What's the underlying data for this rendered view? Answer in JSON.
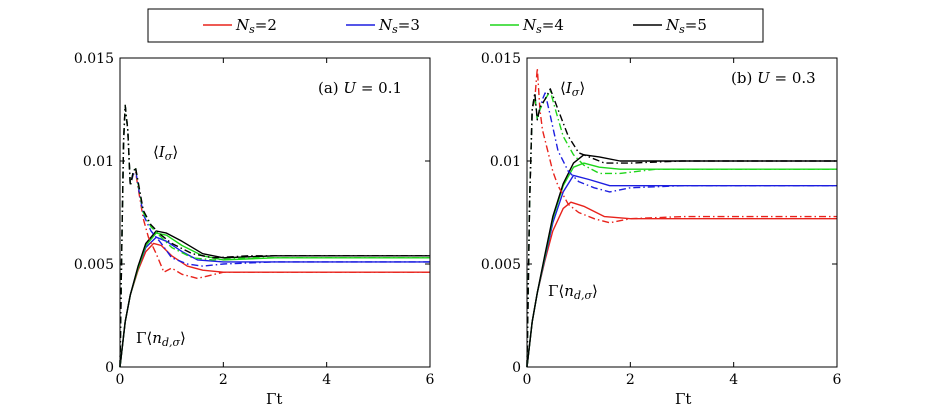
{
  "legend": [
    {
      "label": "N_s=2",
      "N": "2",
      "color": "#e8231c"
    },
    {
      "label": "N_s=3",
      "N": "3",
      "color": "#1d1ee0"
    },
    {
      "label": "N_s=4",
      "N": "4",
      "color": "#1ed51a"
    },
    {
      "label": "N_s=5",
      "N": "5",
      "color": "#000000"
    }
  ],
  "chart_data": [
    {
      "type": "line",
      "panel": "a",
      "title": "(a) U = 0.1",
      "xlabel": "Γt",
      "xlim": [
        0,
        6
      ],
      "ylim": [
        0,
        0.015
      ],
      "xticks": [
        0,
        2,
        4,
        6
      ],
      "xtick_labels": [
        "0",
        "2",
        "4",
        "6"
      ],
      "yticks": [
        0,
        0.005,
        0.01,
        0.015
      ],
      "ytick_labels": [
        "0",
        "0.005",
        "0.01",
        "0.015"
      ],
      "annotations": [
        "⟨I_σ⟩",
        "Γ⟨n_{d,σ}⟩"
      ],
      "series": [
        {
          "name": "Ns=2 Γ⟨n⟩",
          "ns": "2",
          "style": "solid",
          "points": [
            [
              0,
              0
            ],
            [
              0.1,
              0.0022
            ],
            [
              0.2,
              0.0035
            ],
            [
              0.35,
              0.0047
            ],
            [
              0.5,
              0.0056
            ],
            [
              0.65,
              0.006
            ],
            [
              0.8,
              0.0059
            ],
            [
              1.0,
              0.0054
            ],
            [
              1.3,
              0.0049
            ],
            [
              1.6,
              0.0047
            ],
            [
              2.0,
              0.0046
            ],
            [
              3.0,
              0.0046
            ],
            [
              6.0,
              0.0046
            ]
          ]
        },
        {
          "name": "Ns=3 Γ⟨n⟩",
          "ns": "3",
          "style": "solid",
          "points": [
            [
              0,
              0
            ],
            [
              0.1,
              0.0022
            ],
            [
              0.2,
              0.0035
            ],
            [
              0.35,
              0.0048
            ],
            [
              0.5,
              0.0058
            ],
            [
              0.7,
              0.0063
            ],
            [
              0.9,
              0.0061
            ],
            [
              1.2,
              0.0056
            ],
            [
              1.5,
              0.0052
            ],
            [
              2.0,
              0.0051
            ],
            [
              3.0,
              0.0051
            ],
            [
              6.0,
              0.0051
            ]
          ]
        },
        {
          "name": "Ns=4 Γ⟨n⟩",
          "ns": "4",
          "style": "solid",
          "points": [
            [
              0,
              0
            ],
            [
              0.1,
              0.0022
            ],
            [
              0.2,
              0.0035
            ],
            [
              0.35,
              0.0048
            ],
            [
              0.5,
              0.0059
            ],
            [
              0.7,
              0.0065
            ],
            [
              0.9,
              0.0064
            ],
            [
              1.2,
              0.0059
            ],
            [
              1.6,
              0.0054
            ],
            [
              2.0,
              0.0052
            ],
            [
              3.0,
              0.0053
            ],
            [
              6.0,
              0.0053
            ]
          ]
        },
        {
          "name": "Ns=5 Γ⟨n⟩",
          "ns": "5",
          "style": "solid",
          "points": [
            [
              0,
              0
            ],
            [
              0.1,
              0.0022
            ],
            [
              0.2,
              0.0035
            ],
            [
              0.35,
              0.0049
            ],
            [
              0.5,
              0.006
            ],
            [
              0.7,
              0.0066
            ],
            [
              0.9,
              0.0065
            ],
            [
              1.2,
              0.0061
            ],
            [
              1.6,
              0.0055
            ],
            [
              2.0,
              0.0053
            ],
            [
              3.0,
              0.0054
            ],
            [
              6.0,
              0.0054
            ]
          ]
        },
        {
          "name": "Ns=2 ⟨I⟩",
          "ns": "2",
          "style": "dashdot",
          "points": [
            [
              0,
              0
            ],
            [
              0.03,
              0.005
            ],
            [
              0.07,
              0.011
            ],
            [
              0.1,
              0.0127
            ],
            [
              0.15,
              0.0115
            ],
            [
              0.2,
              0.0088
            ],
            [
              0.25,
              0.0093
            ],
            [
              0.3,
              0.0095
            ],
            [
              0.35,
              0.0087
            ],
            [
              0.45,
              0.0072
            ],
            [
              0.55,
              0.0063
            ],
            [
              0.7,
              0.0055
            ],
            [
              0.85,
              0.0046
            ],
            [
              1.0,
              0.0048
            ],
            [
              1.2,
              0.0045
            ],
            [
              1.5,
              0.0043
            ],
            [
              2.0,
              0.0046
            ],
            [
              3.0,
              0.0046
            ],
            [
              6.0,
              0.0046
            ]
          ]
        },
        {
          "name": "Ns=3 ⟨I⟩",
          "ns": "3",
          "style": "dashdot",
          "points": [
            [
              0,
              0
            ],
            [
              0.03,
              0.005
            ],
            [
              0.07,
              0.011
            ],
            [
              0.1,
              0.0127
            ],
            [
              0.15,
              0.0115
            ],
            [
              0.2,
              0.0088
            ],
            [
              0.25,
              0.0093
            ],
            [
              0.3,
              0.0096
            ],
            [
              0.35,
              0.0088
            ],
            [
              0.45,
              0.0074
            ],
            [
              0.6,
              0.0066
            ],
            [
              0.8,
              0.006
            ],
            [
              1.0,
              0.0053
            ],
            [
              1.3,
              0.005
            ],
            [
              1.6,
              0.0049
            ],
            [
              2.0,
              0.005
            ],
            [
              3.0,
              0.0051
            ],
            [
              6.0,
              0.0051
            ]
          ]
        },
        {
          "name": "Ns=4 ⟨I⟩",
          "ns": "4",
          "style": "dashdot",
          "points": [
            [
              0,
              0
            ],
            [
              0.03,
              0.005
            ],
            [
              0.07,
              0.011
            ],
            [
              0.1,
              0.0127
            ],
            [
              0.15,
              0.0115
            ],
            [
              0.2,
              0.0088
            ],
            [
              0.25,
              0.0094
            ],
            [
              0.3,
              0.0097
            ],
            [
              0.35,
              0.0089
            ],
            [
              0.45,
              0.0075
            ],
            [
              0.6,
              0.0068
            ],
            [
              0.8,
              0.0063
            ],
            [
              1.0,
              0.0058
            ],
            [
              1.4,
              0.0053
            ],
            [
              1.8,
              0.0052
            ],
            [
              2.5,
              0.0053
            ],
            [
              6.0,
              0.0053
            ]
          ]
        },
        {
          "name": "Ns=5 ⟨I⟩",
          "ns": "5",
          "style": "dashdot",
          "points": [
            [
              0,
              0
            ],
            [
              0.03,
              0.005
            ],
            [
              0.07,
              0.011
            ],
            [
              0.1,
              0.0127
            ],
            [
              0.15,
              0.0115
            ],
            [
              0.2,
              0.0088
            ],
            [
              0.25,
              0.0094
            ],
            [
              0.3,
              0.0097
            ],
            [
              0.35,
              0.009
            ],
            [
              0.45,
              0.0076
            ],
            [
              0.6,
              0.0069
            ],
            [
              0.8,
              0.0064
            ],
            [
              1.0,
              0.006
            ],
            [
              1.4,
              0.0055
            ],
            [
              1.8,
              0.0053
            ],
            [
              2.5,
              0.0054
            ],
            [
              6.0,
              0.0054
            ]
          ]
        }
      ]
    },
    {
      "type": "line",
      "panel": "b",
      "title": "(b) U = 0.3",
      "xlabel": "Γt",
      "xlim": [
        0,
        6
      ],
      "ylim": [
        0,
        0.015
      ],
      "xticks": [
        0,
        2,
        4,
        6
      ],
      "xtick_labels": [
        "0",
        "2",
        "4",
        "6"
      ],
      "yticks": [
        0,
        0.005,
        0.01,
        0.015
      ],
      "ytick_labels": [
        "0",
        "0.005",
        "0.01",
        "0.015"
      ],
      "annotations": [
        "⟨I_σ⟩",
        "Γ⟨n_{d,σ}⟩"
      ],
      "series": [
        {
          "name": "Ns=2 Γ⟨n⟩",
          "ns": "2",
          "style": "solid",
          "points": [
            [
              0,
              0
            ],
            [
              0.1,
              0.0022
            ],
            [
              0.2,
              0.0036
            ],
            [
              0.35,
              0.0052
            ],
            [
              0.5,
              0.0066
            ],
            [
              0.7,
              0.0077
            ],
            [
              0.85,
              0.008
            ],
            [
              1.1,
              0.0078
            ],
            [
              1.5,
              0.0073
            ],
            [
              2.0,
              0.0072
            ],
            [
              3.0,
              0.0072
            ],
            [
              6.0,
              0.0072
            ]
          ]
        },
        {
          "name": "Ns=3 Γ⟨n⟩",
          "ns": "3",
          "style": "solid",
          "points": [
            [
              0,
              0
            ],
            [
              0.1,
              0.0022
            ],
            [
              0.2,
              0.0036
            ],
            [
              0.35,
              0.0053
            ],
            [
              0.5,
              0.007
            ],
            [
              0.7,
              0.0085
            ],
            [
              0.9,
              0.0093
            ],
            [
              1.2,
              0.0091
            ],
            [
              1.6,
              0.0088
            ],
            [
              2.0,
              0.0088
            ],
            [
              3.0,
              0.0088
            ],
            [
              6.0,
              0.0088
            ]
          ]
        },
        {
          "name": "Ns=4 Γ⟨n⟩",
          "ns": "4",
          "style": "solid",
          "points": [
            [
              0,
              0
            ],
            [
              0.1,
              0.0022
            ],
            [
              0.2,
              0.0036
            ],
            [
              0.35,
              0.0054
            ],
            [
              0.5,
              0.0072
            ],
            [
              0.7,
              0.0088
            ],
            [
              0.9,
              0.0097
            ],
            [
              1.1,
              0.0099
            ],
            [
              1.4,
              0.0097
            ],
            [
              1.8,
              0.0096
            ],
            [
              2.5,
              0.0096
            ],
            [
              6.0,
              0.0096
            ]
          ]
        },
        {
          "name": "Ns=5 Γ⟨n⟩",
          "ns": "5",
          "style": "solid",
          "points": [
            [
              0,
              0
            ],
            [
              0.1,
              0.0022
            ],
            [
              0.2,
              0.0036
            ],
            [
              0.35,
              0.0055
            ],
            [
              0.5,
              0.0073
            ],
            [
              0.7,
              0.0089
            ],
            [
              0.9,
              0.0099
            ],
            [
              1.1,
              0.0103
            ],
            [
              1.4,
              0.0102
            ],
            [
              1.8,
              0.01
            ],
            [
              2.5,
              0.01
            ],
            [
              6.0,
              0.01
            ]
          ]
        },
        {
          "name": "Ns=2 ⟨I⟩",
          "ns": "2",
          "style": "dashdot",
          "points": [
            [
              0,
              0
            ],
            [
              0.05,
              0.008
            ],
            [
              0.1,
              0.0125
            ],
            [
              0.15,
              0.013
            ],
            [
              0.2,
              0.0145
            ],
            [
              0.25,
              0.0125
            ],
            [
              0.3,
              0.0115
            ],
            [
              0.4,
              0.0105
            ],
            [
              0.5,
              0.0095
            ],
            [
              0.6,
              0.0088
            ],
            [
              0.8,
              0.0079
            ],
            [
              1.0,
              0.0075
            ],
            [
              1.3,
              0.0072
            ],
            [
              1.6,
              0.007
            ],
            [
              2.0,
              0.0072
            ],
            [
              3.0,
              0.0073
            ],
            [
              6.0,
              0.0073
            ]
          ]
        },
        {
          "name": "Ns=3 ⟨I⟩",
          "ns": "3",
          "style": "dashdot",
          "points": [
            [
              0,
              0
            ],
            [
              0.05,
              0.008
            ],
            [
              0.1,
              0.0125
            ],
            [
              0.15,
              0.0132
            ],
            [
              0.2,
              0.012
            ],
            [
              0.25,
              0.0125
            ],
            [
              0.3,
              0.013
            ],
            [
              0.35,
              0.0133
            ],
            [
              0.45,
              0.0122
            ],
            [
              0.6,
              0.0105
            ],
            [
              0.8,
              0.0095
            ],
            [
              1.0,
              0.009
            ],
            [
              1.3,
              0.0087
            ],
            [
              1.6,
              0.0085
            ],
            [
              2.0,
              0.0087
            ],
            [
              3.0,
              0.0088
            ],
            [
              6.0,
              0.0088
            ]
          ]
        },
        {
          "name": "Ns=4 ⟨I⟩",
          "ns": "4",
          "style": "dashdot",
          "points": [
            [
              0,
              0
            ],
            [
              0.05,
              0.008
            ],
            [
              0.1,
              0.0125
            ],
            [
              0.15,
              0.0132
            ],
            [
              0.2,
              0.012
            ],
            [
              0.25,
              0.0125
            ],
            [
              0.35,
              0.013
            ],
            [
              0.45,
              0.0134
            ],
            [
              0.55,
              0.0125
            ],
            [
              0.7,
              0.0112
            ],
            [
              0.9,
              0.0103
            ],
            [
              1.1,
              0.0098
            ],
            [
              1.4,
              0.0094
            ],
            [
              1.8,
              0.0094
            ],
            [
              2.5,
              0.0096
            ],
            [
              6.0,
              0.0096
            ]
          ]
        },
        {
          "name": "Ns=5 ⟨I⟩",
          "ns": "5",
          "style": "dashdot",
          "points": [
            [
              0,
              0
            ],
            [
              0.05,
              0.008
            ],
            [
              0.1,
              0.0125
            ],
            [
              0.15,
              0.0133
            ],
            [
              0.2,
              0.012
            ],
            [
              0.25,
              0.0126
            ],
            [
              0.35,
              0.013
            ],
            [
              0.45,
              0.0135
            ],
            [
              0.6,
              0.0125
            ],
            [
              0.8,
              0.0112
            ],
            [
              1.0,
              0.0104
            ],
            [
              1.2,
              0.0102
            ],
            [
              1.5,
              0.0099
            ],
            [
              2.0,
              0.0099
            ],
            [
              3.0,
              0.01
            ],
            [
              6.0,
              0.01
            ]
          ]
        }
      ]
    }
  ]
}
